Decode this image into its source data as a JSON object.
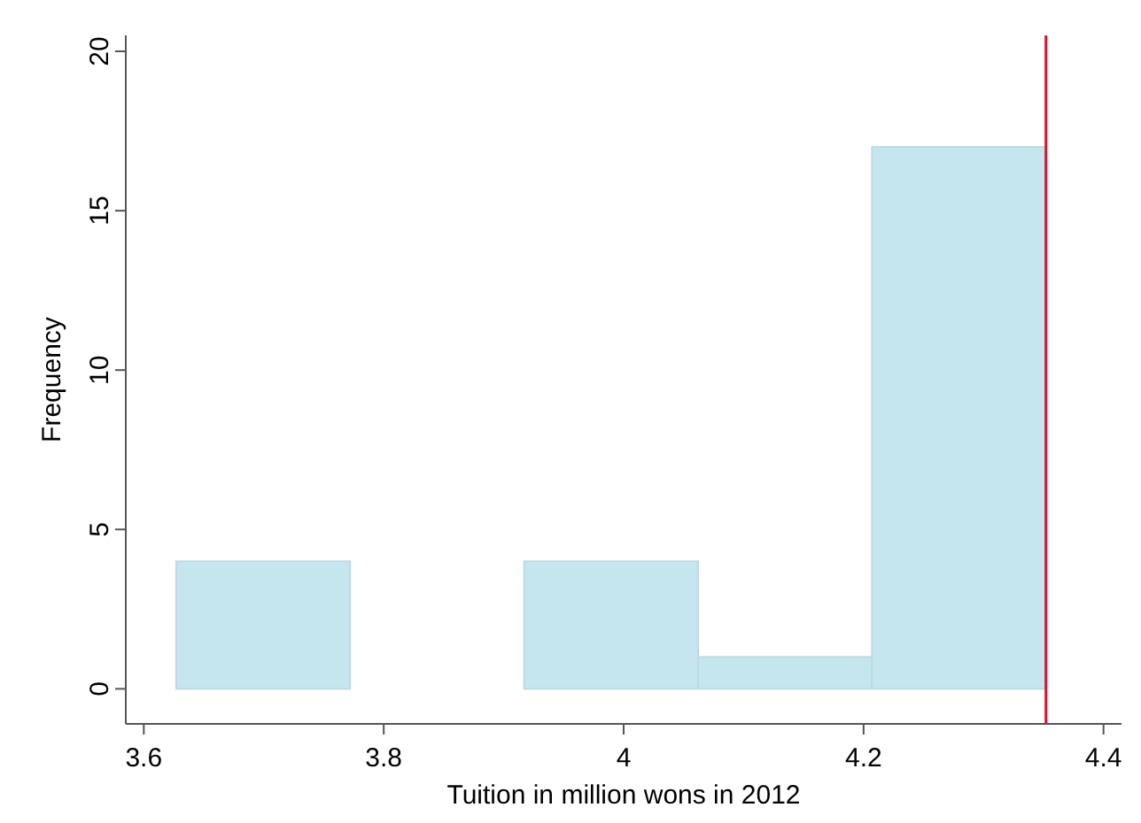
{
  "chart_data": {
    "type": "histogram",
    "xlabel": "Tuition in million wons in 2012",
    "ylabel": "Frequency",
    "bins": [
      3.627,
      3.772,
      3.917,
      4.062,
      4.207,
      4.352
    ],
    "values": [
      4,
      0,
      4,
      1,
      17
    ],
    "color": "#c6e6ef",
    "xlim": [
      3.585,
      4.415
    ],
    "xticks": [
      3.6,
      3.8,
      4,
      4.2,
      4.4
    ],
    "ylim": [
      -1.1,
      20.5
    ],
    "yticks": [
      0,
      5,
      10,
      15,
      20
    ],
    "ref_lines": [
      {
        "axis": "x",
        "value": 4.352,
        "color": "#e0102f"
      }
    ],
    "grid": false
  }
}
